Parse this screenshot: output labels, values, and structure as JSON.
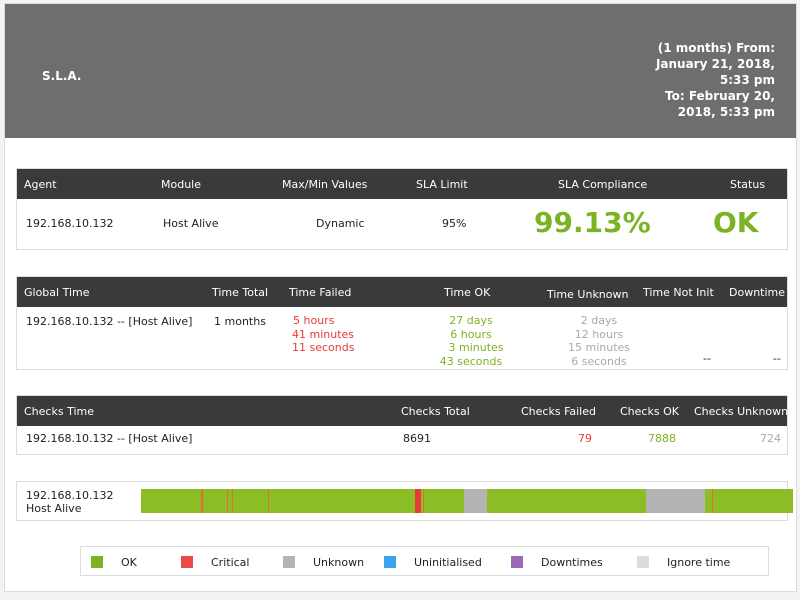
{
  "header": {
    "title": "S.L.A.",
    "period_lines": [
      "(1 months) From:",
      "January 21, 2018,",
      "5:33 pm",
      "To: February 20,",
      "2018, 5:33 pm"
    ]
  },
  "summary": {
    "columns": [
      "Agent",
      "Module",
      "Max/Min Values",
      "SLA Limit",
      "SLA Compliance",
      "Status"
    ],
    "row": {
      "agent": "192.168.10.132",
      "module": "Host Alive",
      "maxmin": "Dynamic",
      "sla_limit": "95%",
      "compliance": "99.13%",
      "status": "OK"
    }
  },
  "time_table": {
    "columns": [
      "Global Time",
      "Time Total",
      "Time Failed",
      "Time OK",
      "Time Unknown",
      "Time Not Init",
      "Downtime"
    ],
    "row": {
      "name": "192.168.10.132 -- [Host Alive]",
      "total": "1 months",
      "failed": [
        "5 hours",
        "41 minutes",
        "11 seconds"
      ],
      "ok": [
        "27 days",
        "6 hours",
        "3 minutes",
        "43 seconds"
      ],
      "unknown": [
        "2 days",
        "12 hours",
        "15 minutes",
        "6 seconds"
      ],
      "not_init": "--",
      "downtime": "--"
    }
  },
  "checks_table": {
    "columns": [
      "Checks Time",
      "Checks Total",
      "Checks Failed",
      "Checks OK",
      "Checks Unknown"
    ],
    "row": {
      "name": "192.168.10.132 -- [Host Alive]",
      "total": "8691",
      "failed": "79",
      "ok": "7888",
      "unknown": "724"
    }
  },
  "graph": {
    "agent": "192.168.10.132",
    "module": "Host Alive",
    "base_color": "#8bbe24",
    "segments": [
      {
        "start": 0.0,
        "end": 0.0925,
        "color": "#8bbe24"
      },
      {
        "start": 0.0925,
        "end": 0.0948,
        "color": "#e86a3a"
      },
      {
        "start": 0.1315,
        "end": 0.1338,
        "color": "#e86a3a"
      },
      {
        "start": 0.1392,
        "end": 0.1407,
        "color": "#e86a3a"
      },
      {
        "start": 0.195,
        "end": 0.1965,
        "color": "#e86a3a"
      },
      {
        "start": 0.421,
        "end": 0.429,
        "color": "#e83a3a"
      },
      {
        "start": 0.432,
        "end": 0.434,
        "color": "#e86a3a"
      },
      {
        "start": 0.496,
        "end": 0.53,
        "color": "#b4b4b4"
      },
      {
        "start": 0.775,
        "end": 0.865,
        "color": "#b4b4b4"
      },
      {
        "start": 0.865,
        "end": 0.872,
        "color": "#8bbe24"
      },
      {
        "start": 0.875,
        "end": 0.8765,
        "color": "#e86a3a"
      }
    ]
  },
  "legend": [
    {
      "label": "OK",
      "color": "#7cb325"
    },
    {
      "label": "Critical",
      "color": "#ec4a4a"
    },
    {
      "label": "Unknown",
      "color": "#b4b4b4"
    },
    {
      "label": "Uninitialised",
      "color": "#3ba3ec"
    },
    {
      "label": "Downtimes",
      "color": "#9b69b5"
    },
    {
      "label": "Ignore time",
      "color": "#dcdcdc"
    }
  ]
}
